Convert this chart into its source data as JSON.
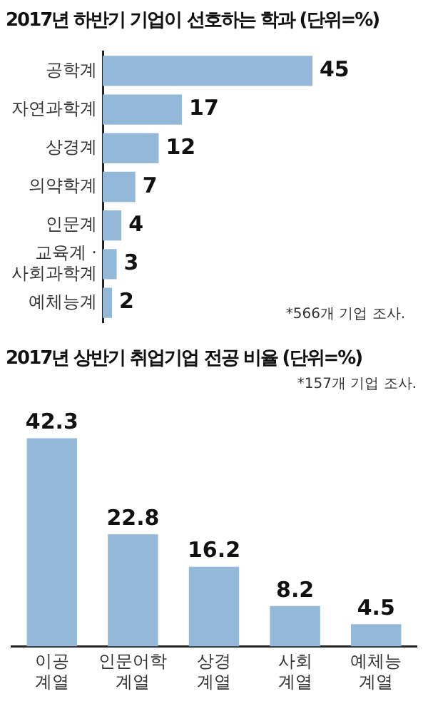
{
  "chart_data": [
    {
      "type": "bar",
      "orientation": "horizontal",
      "title": "2017년 하반기 기업이 선호하는 학과 (단위=%)",
      "categories": [
        "공학계",
        "자연과학계",
        "상경계",
        "의약학계",
        "인문계",
        "교육계 ·\n사회과학계",
        "예체능계"
      ],
      "values": [
        45,
        17,
        12,
        7,
        4,
        3,
        2
      ],
      "color": "#93b8d8",
      "data_labels": true,
      "annotations": [
        "*566개 기업 조사."
      ]
    },
    {
      "type": "bar",
      "title": "2017년 상반기 취업기업 전공 비율 (단위=%)",
      "categories": [
        "이공\n계열",
        "인문어학\n계열",
        "상경\n계열",
        "사회\n계열",
        "예체능\n계열"
      ],
      "values": [
        42.3,
        22.8,
        16.2,
        8.2,
        4.5
      ],
      "color": "#93b8d8",
      "data_labels": true,
      "annotations": [
        "*157개 기업 조사."
      ]
    }
  ]
}
